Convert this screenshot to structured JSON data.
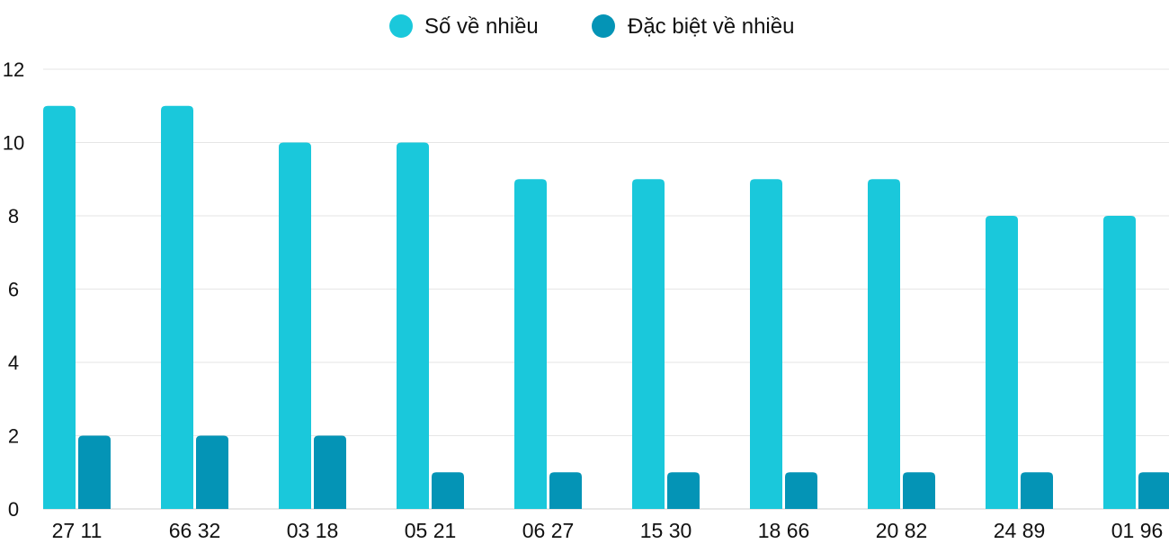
{
  "chart_data": {
    "type": "bar",
    "categories": [
      "27 11",
      "66 32",
      "03 18",
      "05 21",
      "06 27",
      "15 30",
      "18 66",
      "20 82",
      "24 89",
      "01 96"
    ],
    "series": [
      {
        "name": "Số về nhiều",
        "color": "#1ac8db",
        "values": [
          11,
          11,
          10,
          10,
          9,
          9,
          9,
          9,
          8,
          8
        ]
      },
      {
        "name": "Đặc biệt về nhiều",
        "color": "#0494b6",
        "values": [
          2,
          2,
          2,
          1,
          1,
          1,
          1,
          1,
          1,
          1
        ]
      }
    ],
    "yticks": [
      "0",
      "2",
      "4",
      "6",
      "8",
      "10",
      "12"
    ],
    "ylim": [
      0,
      12
    ],
    "grid": true,
    "legend": "top-center"
  }
}
